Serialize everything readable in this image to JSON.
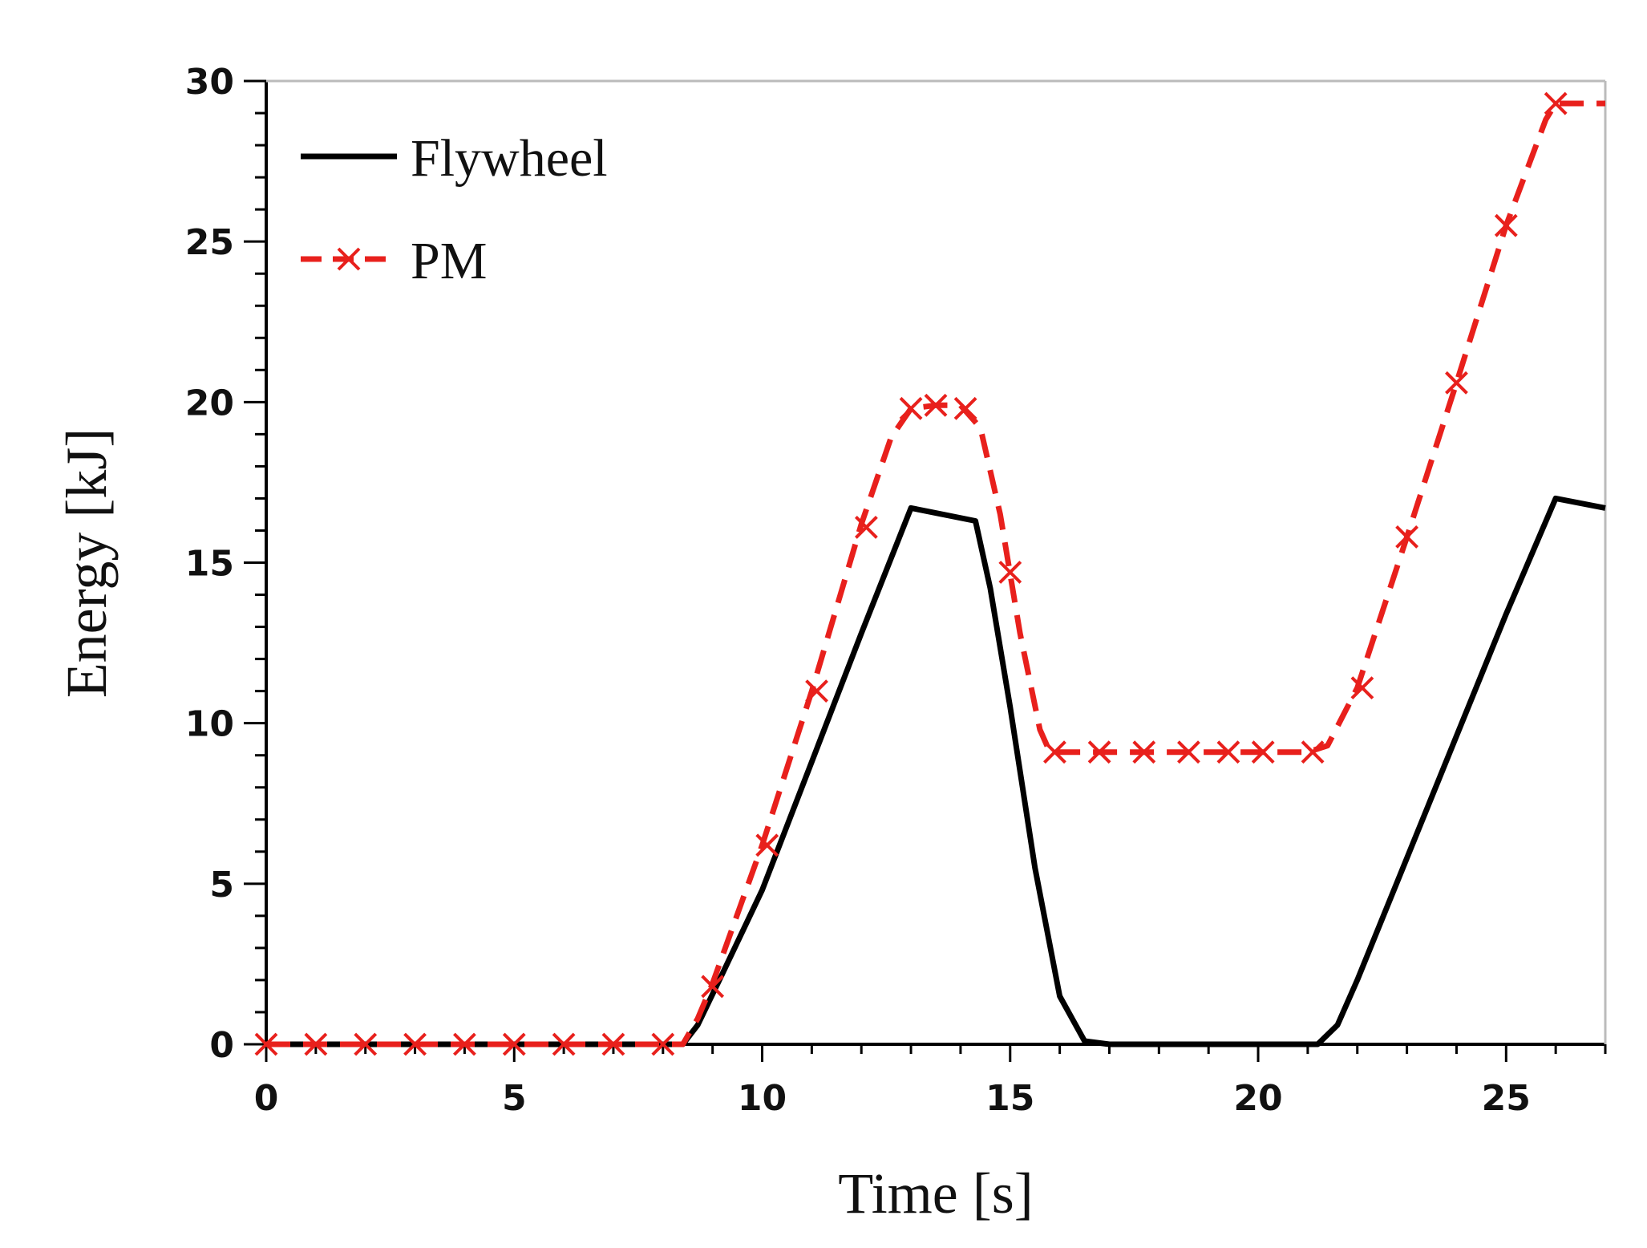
{
  "chart_data": {
    "type": "line",
    "title": "",
    "xlabel": "Time [s]",
    "ylabel": "Energy [kJ]",
    "xlim": [
      0,
      27
    ],
    "ylim": [
      0,
      30
    ],
    "xticks": [
      0,
      5,
      10,
      15,
      20,
      25
    ],
    "yticks": [
      0,
      5,
      10,
      15,
      20,
      25,
      30
    ],
    "grid": false,
    "legend_position": "top-left",
    "series": [
      {
        "name": "Flywheel",
        "color": "#000000",
        "line_style": "solid",
        "marker": "none",
        "x": [
          0,
          8.4,
          8.7,
          9.2,
          10,
          11,
          12,
          13,
          14.3,
          14.6,
          15,
          15.5,
          16,
          16.5,
          17,
          20,
          21.2,
          21.6,
          22,
          23,
          24,
          25,
          26,
          27
        ],
        "y": [
          0,
          0,
          0.6,
          2.2,
          4.8,
          8.8,
          12.8,
          16.7,
          16.3,
          14.2,
          10.5,
          5.5,
          1.5,
          0.1,
          0,
          0,
          0,
          0.6,
          2.0,
          5.8,
          9.6,
          13.4,
          17.0,
          16.7
        ]
      },
      {
        "name": "PM",
        "color": "#e8201c",
        "line_style": "dashed",
        "marker": "x",
        "x": [
          0,
          8.4,
          8.7,
          9,
          10,
          11,
          12,
          12.6,
          13,
          13.5,
          14,
          14.4,
          14.8,
          15.2,
          15.6,
          15.8,
          16,
          17,
          18,
          19,
          20,
          21,
          21.4,
          22,
          23,
          24,
          25,
          25.8,
          26,
          27
        ],
        "y": [
          0,
          0,
          0.8,
          1.9,
          6.2,
          11.0,
          16.2,
          18.9,
          19.8,
          19.9,
          19.9,
          19.2,
          16.5,
          12.8,
          9.8,
          9.1,
          9.1,
          9.1,
          9.1,
          9.1,
          9.1,
          9.1,
          9.3,
          11.1,
          15.8,
          20.6,
          25.5,
          28.8,
          29.3,
          29.3
        ],
        "marker_x": [
          0,
          1,
          2,
          3,
          4,
          5,
          6,
          7,
          8,
          9,
          10.1,
          11.1,
          12.1,
          13,
          13.5,
          14.1,
          15,
          15.9,
          16.8,
          17.7,
          18.6,
          19.4,
          20.1,
          21.1,
          22.1,
          23,
          24,
          25,
          26
        ],
        "marker_y": [
          0,
          0,
          0,
          0,
          0,
          0,
          0,
          0,
          0,
          1.8,
          6.2,
          11.0,
          16.1,
          19.8,
          19.9,
          19.8,
          14.7,
          9.1,
          9.1,
          9.1,
          9.1,
          9.1,
          9.1,
          9.1,
          11.1,
          15.8,
          20.6,
          25.5,
          29.3
        ]
      }
    ]
  }
}
